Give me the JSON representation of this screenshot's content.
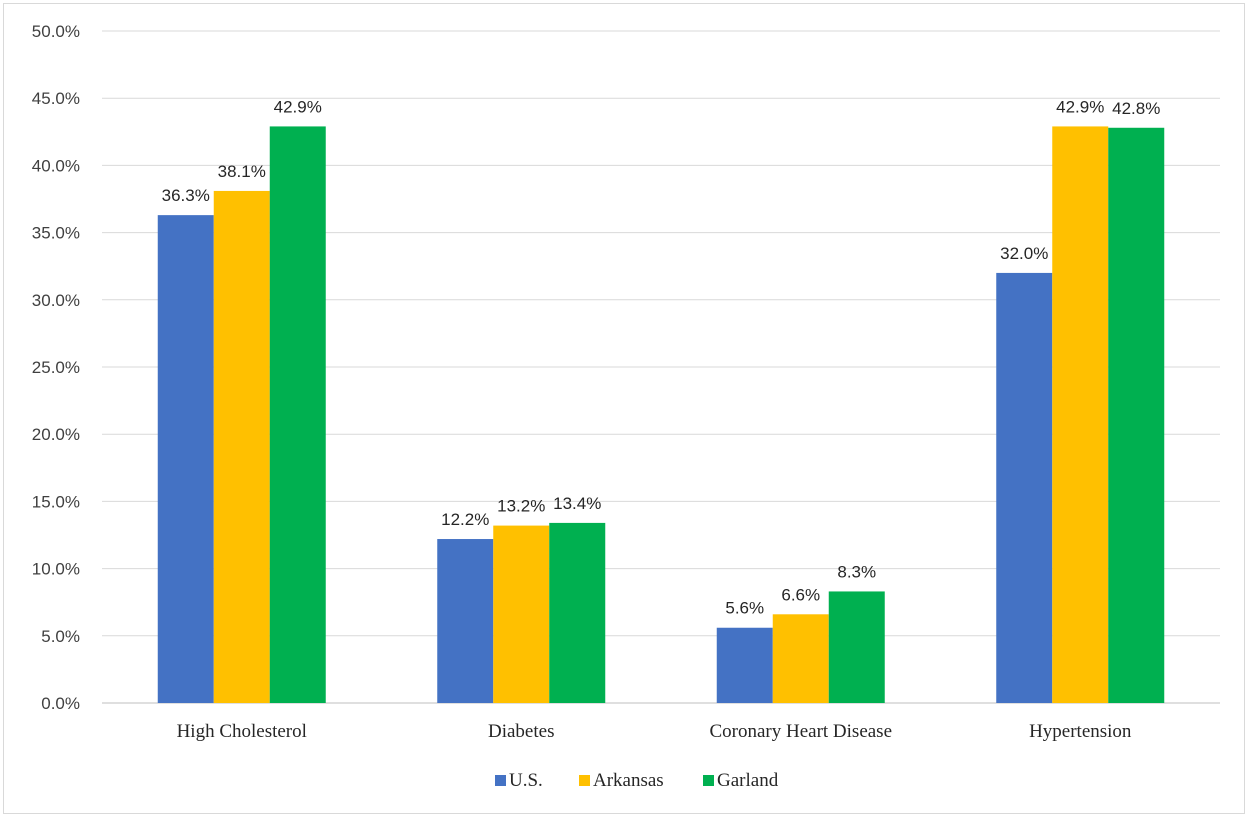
{
  "chart_data": {
    "type": "bar",
    "categories": [
      "High Cholesterol",
      "Diabetes",
      "Coronary Heart Disease",
      "Hypertension"
    ],
    "series": [
      {
        "name": "U.S.",
        "color": "#4472c4",
        "values": [
          36.3,
          12.2,
          5.6,
          32.0
        ],
        "labels": [
          "36.3%",
          "12.2%",
          "5.6%",
          "32.0%"
        ]
      },
      {
        "name": "Arkansas",
        "color": "#ffc000",
        "values": [
          38.1,
          13.2,
          6.6,
          42.9
        ],
        "labels": [
          "38.1%",
          "13.2%",
          "6.6%",
          "42.9%"
        ]
      },
      {
        "name": "Garland",
        "color": "#00b050",
        "values": [
          42.9,
          13.4,
          8.3,
          42.8
        ],
        "labels": [
          "42.9%",
          "13.4%",
          "8.3%",
          "42.8%"
        ]
      }
    ],
    "ylim": [
      0,
      50
    ],
    "yticks": [
      "0.0%",
      "5.0%",
      "10.0%",
      "15.0%",
      "20.0%",
      "25.0%",
      "30.0%",
      "35.0%",
      "40.0%",
      "45.0%",
      "50.0%"
    ],
    "grid": true,
    "legend": "bottom"
  }
}
